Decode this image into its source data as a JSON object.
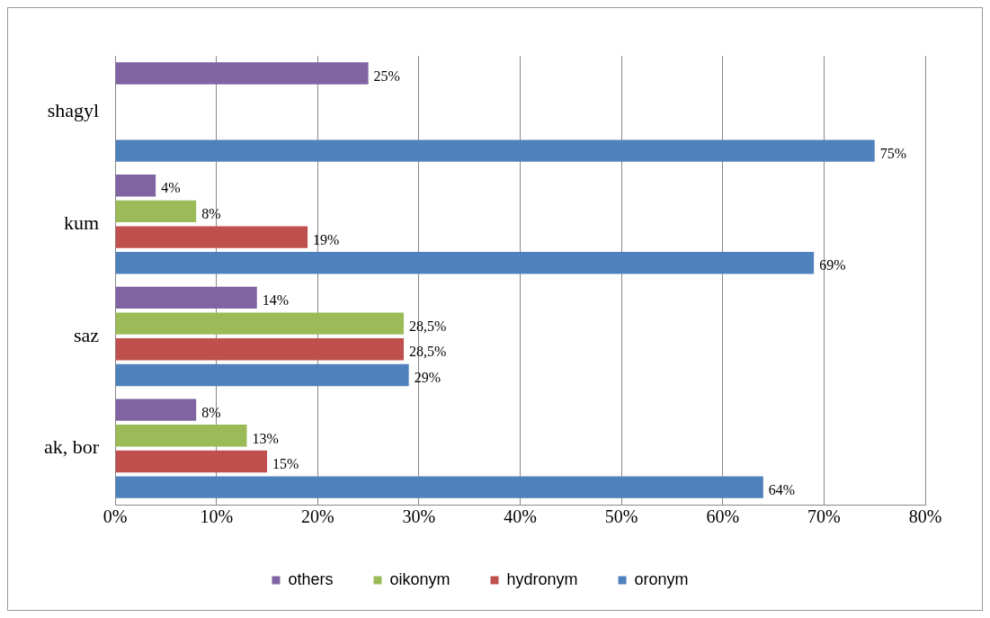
{
  "chart_data": {
    "type": "bar",
    "orientation": "horizontal",
    "categories": [
      "shagyl",
      "kum",
      "saz",
      "ak, bor"
    ],
    "series": [
      {
        "name": "others",
        "color": "#8064a2",
        "values": [
          25,
          4,
          14,
          8
        ],
        "value_labels": [
          "25%",
          "4%",
          "14%",
          "8%"
        ]
      },
      {
        "name": "oikonym",
        "color": "#9bbb59",
        "values": [
          null,
          8,
          28.5,
          13
        ],
        "value_labels": [
          null,
          "8%",
          "28,5%",
          "13%"
        ]
      },
      {
        "name": "hydronym",
        "color": "#c0504d",
        "values": [
          null,
          19,
          28.5,
          15
        ],
        "value_labels": [
          null,
          "19%",
          "28,5%",
          "15%"
        ]
      },
      {
        "name": "oronym",
        "color": "#4f81bd",
        "values": [
          75,
          69,
          29,
          64
        ],
        "value_labels": [
          "75%",
          "69%",
          "29%",
          "64%"
        ]
      }
    ],
    "xlim": [
      0,
      80
    ],
    "xticks": [
      {
        "value": 0,
        "label": "0%"
      },
      {
        "value": 10,
        "label": "10%"
      },
      {
        "value": 20,
        "label": "20%"
      },
      {
        "value": 30,
        "label": "30%"
      },
      {
        "value": 40,
        "label": "40%"
      },
      {
        "value": 50,
        "label": "50%"
      },
      {
        "value": 60,
        "label": "60%"
      },
      {
        "value": 70,
        "label": "70%"
      },
      {
        "value": 80,
        "label": "80%"
      }
    ],
    "grid": "x",
    "legend": "bottom"
  }
}
